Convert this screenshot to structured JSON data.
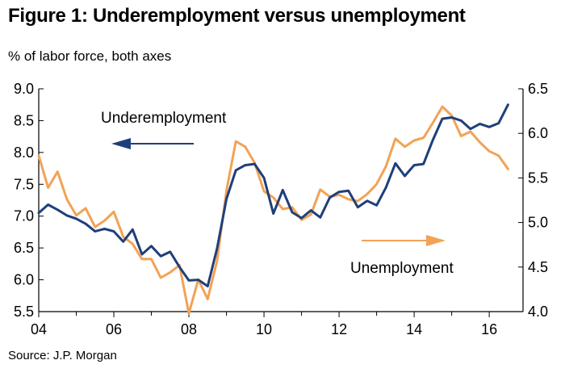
{
  "figure": {
    "title": "Figure 1: Underemployment versus unemployment",
    "subtitle": "% of labor force, both axes",
    "source": "Source: J.P. Morgan"
  },
  "chart_data": {
    "type": "line",
    "title": "Figure 1: Underemployment versus unemployment",
    "subtitle": "% of labor force, both axes",
    "x_axis": {
      "range": [
        2004.0,
        2016.9
      ],
      "tick_values": [
        2004,
        2006,
        2008,
        2010,
        2012,
        2014,
        2016
      ],
      "tick_labels": [
        "04",
        "06",
        "08",
        "10",
        "12",
        "14",
        "16"
      ]
    },
    "y_left": {
      "range": [
        5.5,
        9.0
      ],
      "ticks": [
        "5.5",
        "6.0",
        "6.5",
        "7.0",
        "7.5",
        "8.0",
        "8.5",
        "9.0"
      ]
    },
    "y_right": {
      "range": [
        4.0,
        6.5
      ],
      "ticks": [
        "4.0",
        "4.5",
        "5.0",
        "5.5",
        "6.0",
        "6.5"
      ]
    },
    "grid": false,
    "series": [
      {
        "name": "Underemployment",
        "axis": "left",
        "color": "#1f3f7a",
        "x": [
          2004.0,
          2004.25,
          2004.5,
          2004.75,
          2005.0,
          2005.25,
          2005.5,
          2005.75,
          2006.0,
          2006.25,
          2006.5,
          2006.75,
          2007.0,
          2007.25,
          2007.5,
          2007.75,
          2008.0,
          2008.25,
          2008.5,
          2008.75,
          2009.0,
          2009.25,
          2009.5,
          2009.75,
          2010.0,
          2010.25,
          2010.5,
          2010.75,
          2011.0,
          2011.25,
          2011.5,
          2011.75,
          2012.0,
          2012.25,
          2012.5,
          2012.75,
          2013.0,
          2013.25,
          2013.5,
          2013.75,
          2014.0,
          2014.25,
          2014.5,
          2014.75,
          2015.0,
          2015.25,
          2015.5,
          2015.75,
          2016.0,
          2016.25,
          2016.5
        ],
        "y": [
          7.05,
          7.18,
          7.1,
          7.01,
          6.96,
          6.88,
          6.76,
          6.8,
          6.76,
          6.6,
          6.79,
          6.4,
          6.53,
          6.37,
          6.44,
          6.2,
          5.99,
          6.0,
          5.9,
          6.49,
          7.27,
          7.72,
          7.8,
          7.82,
          7.6,
          7.04,
          7.41,
          7.06,
          6.97,
          7.09,
          6.98,
          7.29,
          7.38,
          7.4,
          7.14,
          7.24,
          7.17,
          7.45,
          7.83,
          7.63,
          7.8,
          7.82,
          8.2,
          8.53,
          8.55,
          8.5,
          8.37,
          8.45,
          8.4,
          8.46,
          8.75
        ]
      },
      {
        "name": "Unemployment",
        "axis": "right",
        "color": "#f2a255",
        "x": [
          2004.0,
          2004.25,
          2004.5,
          2004.75,
          2005.0,
          2005.25,
          2005.5,
          2005.75,
          2006.0,
          2006.25,
          2006.5,
          2006.75,
          2007.0,
          2007.25,
          2007.5,
          2007.75,
          2008.0,
          2008.25,
          2008.5,
          2008.75,
          2009.0,
          2009.25,
          2009.5,
          2009.75,
          2010.0,
          2010.25,
          2010.5,
          2010.75,
          2011.0,
          2011.25,
          2011.5,
          2011.75,
          2012.0,
          2012.25,
          2012.5,
          2012.75,
          2013.0,
          2013.25,
          2013.5,
          2013.75,
          2014.0,
          2014.25,
          2014.5,
          2014.75,
          2015.0,
          2015.25,
          2015.5,
          2015.75,
          2016.0,
          2016.25,
          2016.5
        ],
        "y": [
          5.75,
          5.39,
          5.57,
          5.26,
          5.08,
          5.16,
          4.95,
          5.02,
          5.12,
          4.84,
          4.76,
          4.59,
          4.59,
          4.38,
          4.44,
          4.52,
          3.98,
          4.36,
          4.14,
          4.57,
          5.36,
          5.91,
          5.85,
          5.67,
          5.35,
          5.28,
          5.15,
          5.17,
          5.03,
          5.09,
          5.37,
          5.29,
          5.31,
          5.26,
          5.24,
          5.32,
          5.43,
          5.63,
          5.94,
          5.85,
          5.92,
          5.95,
          6.12,
          6.3,
          6.2,
          5.97,
          6.02,
          5.9,
          5.8,
          5.75,
          5.6
        ]
      }
    ],
    "annotations": [
      {
        "text": "Underemployment",
        "arrow": "left",
        "color": "#1f3f7a"
      },
      {
        "text": "Unemployment",
        "arrow": "right",
        "color": "#f2a255"
      }
    ]
  }
}
